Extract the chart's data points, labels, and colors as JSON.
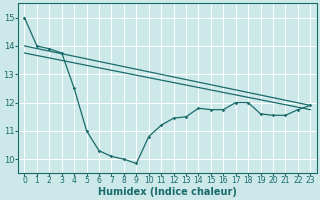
{
  "xlabel": "Humidex (Indice chaleur)",
  "bg_color": "#cce8e8",
  "grid_color": "#ffffff",
  "line_color": "#1a6b6b",
  "xlim": [
    -0.5,
    23.5
  ],
  "ylim": [
    9.5,
    15.5
  ],
  "xticks": [
    0,
    1,
    2,
    3,
    4,
    5,
    6,
    7,
    8,
    9,
    10,
    11,
    12,
    13,
    14,
    15,
    16,
    17,
    18,
    19,
    20,
    21,
    22,
    23
  ],
  "yticks": [
    10,
    11,
    12,
    13,
    14,
    15
  ],
  "series1_x": [
    0,
    1,
    2,
    3,
    4,
    5,
    6,
    7,
    8,
    9,
    10,
    11,
    12,
    13,
    14,
    15,
    16,
    17,
    18,
    19,
    20,
    21,
    22,
    23
  ],
  "series1_y": [
    15.0,
    14.0,
    13.9,
    13.75,
    12.5,
    11.0,
    10.3,
    10.1,
    10.0,
    9.85,
    10.8,
    11.2,
    11.45,
    11.5,
    11.8,
    11.75,
    11.75,
    12.0,
    12.0,
    11.6,
    11.55,
    11.55,
    11.75,
    11.9
  ],
  "series2_x": [
    0,
    23
  ],
  "series2_y": [
    14.0,
    11.9
  ],
  "series3_x": [
    0,
    23
  ],
  "series3_y": [
    13.75,
    11.75
  ],
  "tick_fontsize": 5.5,
  "xlabel_fontsize": 7
}
